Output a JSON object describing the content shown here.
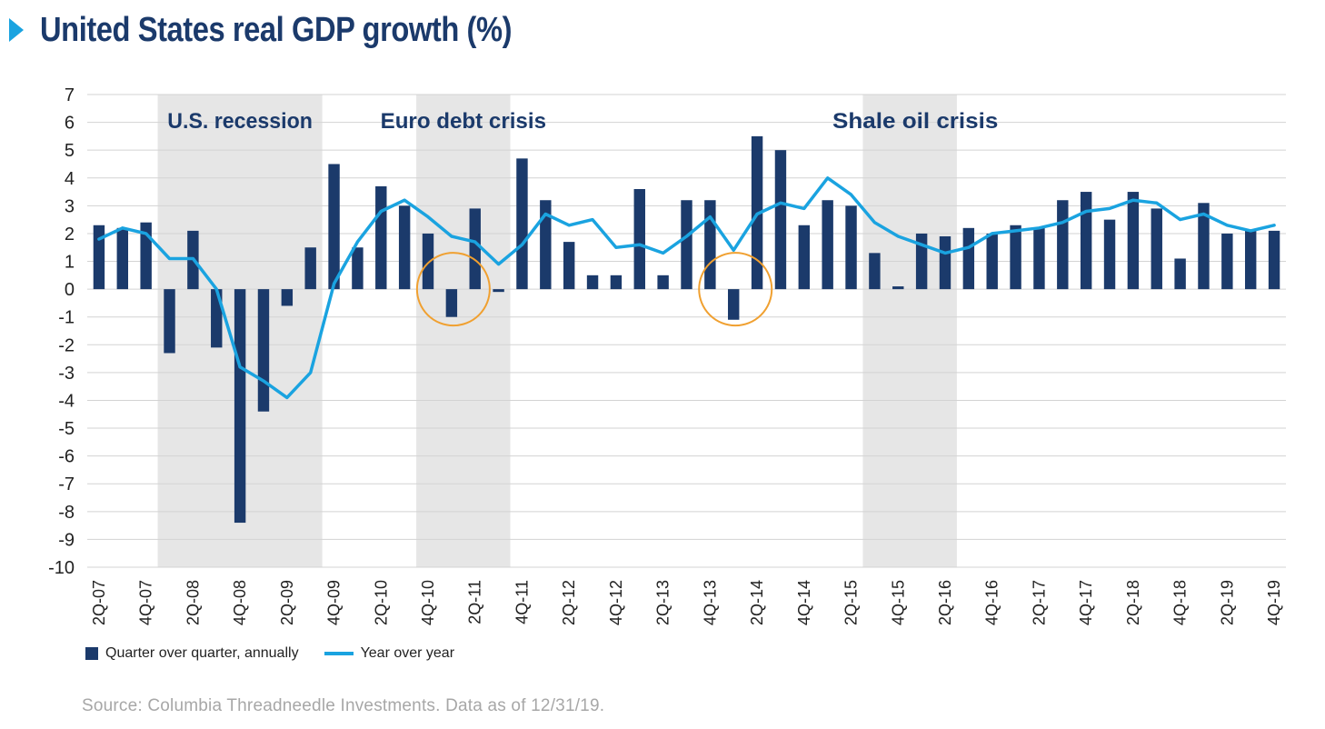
{
  "title": "United States real GDP growth (%)",
  "source": "Source: Columbia Threadneedle Investments. Data as of 12/31/19.",
  "colors": {
    "bar": "#1b3a6b",
    "line": "#1aa3e0",
    "title": "#1b3a6b",
    "shade": "#e6e6e6",
    "circle": "#f0a030",
    "grid": "#d3d3d3"
  },
  "legend": {
    "bar_label": "Quarter over quarter, annually",
    "line_label": "Year over year"
  },
  "chart_data": {
    "type": "bar+line",
    "ylim": [
      -10,
      7
    ],
    "yticks": [
      7,
      6,
      5,
      4,
      3,
      2,
      1,
      0,
      -1,
      -2,
      -3,
      -4,
      -5,
      -6,
      -7,
      -8,
      -9,
      -10
    ],
    "categories": [
      "2Q-07",
      "3Q-07",
      "4Q-07",
      "1Q-08",
      "2Q-08",
      "3Q-08",
      "4Q-08",
      "1Q-09",
      "2Q-09",
      "3Q-09",
      "4Q-09",
      "1Q-10",
      "2Q-10",
      "3Q-10",
      "4Q-10",
      "1Q-11",
      "2Q-11",
      "3Q-11",
      "4Q-11",
      "1Q-12",
      "2Q-12",
      "3Q-12",
      "4Q-12",
      "1Q-13",
      "2Q-13",
      "3Q-13",
      "4Q-13",
      "1Q-14",
      "2Q-14",
      "3Q-14",
      "4Q-14",
      "1Q-15",
      "2Q-15",
      "3Q-15",
      "4Q-15",
      "1Q-16",
      "2Q-16",
      "3Q-16",
      "4Q-16",
      "1Q-17",
      "2Q-17",
      "3Q-17",
      "4Q-17",
      "1Q-18",
      "2Q-18",
      "3Q-18",
      "4Q-18",
      "1Q-19",
      "2Q-19",
      "3Q-19",
      "4Q-19"
    ],
    "tick_labels": [
      "2Q-07",
      "4Q-07",
      "2Q-08",
      "4Q-08",
      "2Q-09",
      "4Q-09",
      "2Q-10",
      "4Q-10",
      "2Q-11",
      "4Q-11",
      "2Q-12",
      "4Q-12",
      "2Q-13",
      "4Q-13",
      "2Q-14",
      "4Q-14",
      "2Q-15",
      "4Q-15",
      "2Q-16",
      "4Q-16",
      "2Q-17",
      "4Q-17",
      "2Q-18",
      "4Q-18",
      "2Q-19",
      "4Q-19"
    ],
    "series": [
      {
        "name": "Quarter over quarter, annually",
        "type": "bar",
        "values": [
          2.3,
          2.2,
          2.4,
          -2.3,
          2.1,
          -2.1,
          -8.4,
          -4.4,
          -0.6,
          1.5,
          4.5,
          1.5,
          3.7,
          3.0,
          2.0,
          -1.0,
          2.9,
          -0.1,
          4.7,
          3.2,
          1.7,
          0.5,
          0.5,
          3.6,
          0.5,
          3.2,
          3.2,
          -1.1,
          5.5,
          5.0,
          2.3,
          3.2,
          3.0,
          1.3,
          0.1,
          2.0,
          1.9,
          2.2,
          2.0,
          2.3,
          2.2,
          3.2,
          3.5,
          2.5,
          3.5,
          2.9,
          1.1,
          3.1,
          2.0,
          2.1,
          2.1
        ]
      },
      {
        "name": "Year over year",
        "type": "line",
        "values": [
          1.8,
          2.2,
          2.0,
          1.1,
          1.1,
          0.0,
          -2.8,
          -3.3,
          -3.9,
          -3.0,
          0.2,
          1.7,
          2.8,
          3.2,
          2.6,
          1.9,
          1.7,
          0.9,
          1.6,
          2.7,
          2.3,
          2.5,
          1.5,
          1.6,
          1.3,
          1.9,
          2.6,
          1.4,
          2.7,
          3.1,
          2.9,
          4.0,
          3.4,
          2.4,
          1.9,
          1.6,
          1.3,
          1.5,
          2.0,
          2.1,
          2.2,
          2.4,
          2.8,
          2.9,
          3.2,
          3.1,
          2.5,
          2.7,
          2.3,
          2.1,
          2.3
        ]
      }
    ],
    "shaded_periods": [
      {
        "label": "U.S. recession",
        "from": "1Q-08",
        "to": "3Q-09"
      },
      {
        "label": "Euro debt crisis",
        "from": "4Q-10",
        "to": "3Q-11"
      },
      {
        "label": "Shale oil crisis",
        "from": "3Q-15",
        "to": "2Q-16"
      }
    ],
    "highlight_circles": [
      "1Q-11",
      "1Q-14"
    ]
  }
}
